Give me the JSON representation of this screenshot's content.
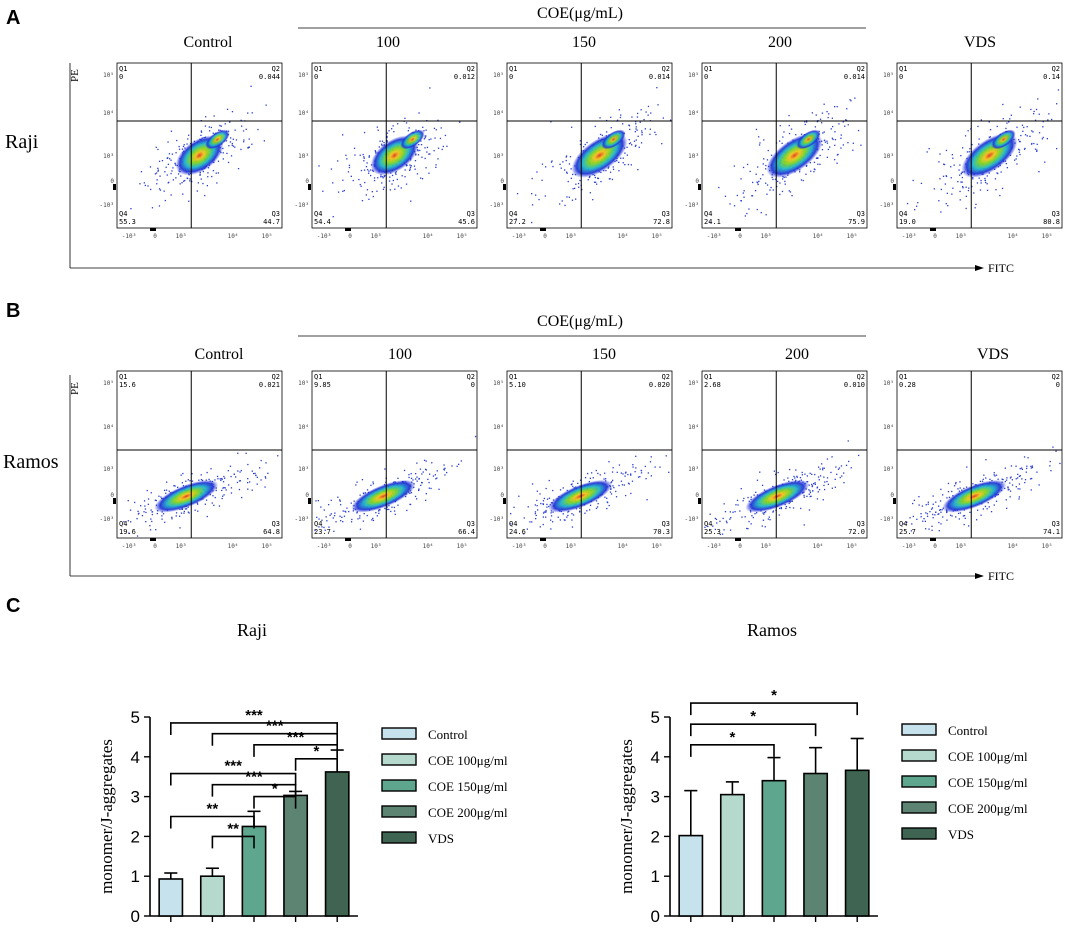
{
  "panels": {
    "A": {
      "letter": "A",
      "header": "COE(μg/mL)",
      "row_label": "Raji",
      "columns": [
        "Control",
        "100",
        "150",
        "200",
        "VDS"
      ],
      "y_axis": "PE",
      "x_axis": "FITC",
      "plots": [
        {
          "q1": "0",
          "q2": "0.044",
          "q3": "44.7",
          "q4": "55.3"
        },
        {
          "q1": "0",
          "q2": "0.012",
          "q3": "45.6",
          "q4": "54.4"
        },
        {
          "q1": "0",
          "q2": "0.014",
          "q3": "72.8",
          "q4": "27.2"
        },
        {
          "q1": "0",
          "q2": "0.014",
          "q3": "75.9",
          "q4": "24.1"
        },
        {
          "q1": "0",
          "q2": "0.14",
          "q3": "80.8",
          "q4": "19.0"
        }
      ]
    },
    "B": {
      "letter": "B",
      "header": "COE(μg/mL)",
      "row_label": "Ramos",
      "columns": [
        "Control",
        "100",
        "150",
        "200",
        "VDS"
      ],
      "y_axis": "PE",
      "x_axis": "FITC",
      "plots": [
        {
          "q1": "15.6",
          "q2": "0.021",
          "q3": "64.8",
          "q4": "19.6"
        },
        {
          "q1": "9.85",
          "q2": "0",
          "q3": "66.4",
          "q4": "23.7"
        },
        {
          "q1": "5.10",
          "q2": "0.020",
          "q3": "70.3",
          "q4": "24.6"
        },
        {
          "q1": "2.68",
          "q2": "0.010",
          "q3": "72.0",
          "q4": "25.3"
        },
        {
          "q1": "0.28",
          "q2": "0",
          "q3": "74.1",
          "q4": "25.7"
        }
      ]
    }
  },
  "flow": {
    "quadrant_names": [
      "Q1",
      "Q2",
      "Q3",
      "Q4"
    ],
    "y_ticks": [
      "10⁵",
      "10⁴",
      "10³",
      "0",
      "-10³"
    ],
    "x_ticks": [
      "-10³",
      "0",
      "10³",
      "10⁴",
      "10⁵"
    ]
  },
  "panel_c_letter": "C",
  "colors": {
    "control": "#c6e2ec",
    "coe100": "#b5d9cc",
    "coe150": "#5fa68f",
    "coe200": "#5d8473",
    "vds": "#3f6552",
    "axis": "#000000"
  },
  "chart_data": [
    {
      "type": "bar",
      "title": "Raji",
      "ylabel": "monomer/J-aggregates",
      "xlabel": "",
      "ylim": [
        0,
        5
      ],
      "yticks": [
        "0",
        "1",
        "2",
        "3",
        "4",
        "5"
      ],
      "categories": [
        "Control",
        "COE 100μg/ml",
        "COE 150μg/ml",
        "COE 200μg/ml",
        "VDS"
      ],
      "values": [
        0.93,
        1.0,
        2.25,
        3.03,
        3.62
      ],
      "errors": [
        0.15,
        0.2,
        0.38,
        0.1,
        0.55
      ],
      "significance": [
        {
          "from": 0,
          "to": 4,
          "label": "***",
          "y": 4.85
        },
        {
          "from": 1,
          "to": 4,
          "label": "***",
          "y": 4.58
        },
        {
          "from": 2,
          "to": 4,
          "label": "***",
          "y": 4.3
        },
        {
          "from": 3,
          "to": 4,
          "label": "*",
          "y": 3.95
        },
        {
          "from": 0,
          "to": 3,
          "label": "***",
          "y": 3.58
        },
        {
          "from": 1,
          "to": 3,
          "label": "***",
          "y": 3.3
        },
        {
          "from": 2,
          "to": 3,
          "label": "*",
          "y": 3.0
        },
        {
          "from": 0,
          "to": 2,
          "label": "**",
          "y": 2.5
        },
        {
          "from": 1,
          "to": 2,
          "label": "**",
          "y": 2.0
        }
      ]
    },
    {
      "type": "bar",
      "title": "Ramos",
      "ylabel": "monomer/J-aggregates",
      "xlabel": "",
      "ylim": [
        0,
        5
      ],
      "yticks": [
        "0",
        "1",
        "2",
        "3",
        "4",
        "5"
      ],
      "categories": [
        "Control",
        "COE 100μg/ml",
        "COE 150μg/ml",
        "COE 200μg/ml",
        "VDS"
      ],
      "values": [
        2.02,
        3.05,
        3.4,
        3.58,
        3.66
      ],
      "errors": [
        1.13,
        0.32,
        0.58,
        0.65,
        0.8
      ],
      "significance": [
        {
          "from": 0,
          "to": 2,
          "label": "*",
          "y": 4.3
        },
        {
          "from": 0,
          "to": 3,
          "label": "*",
          "y": 4.82
        },
        {
          "from": 0,
          "to": 4,
          "label": "*",
          "y": 5.35
        }
      ]
    }
  ]
}
